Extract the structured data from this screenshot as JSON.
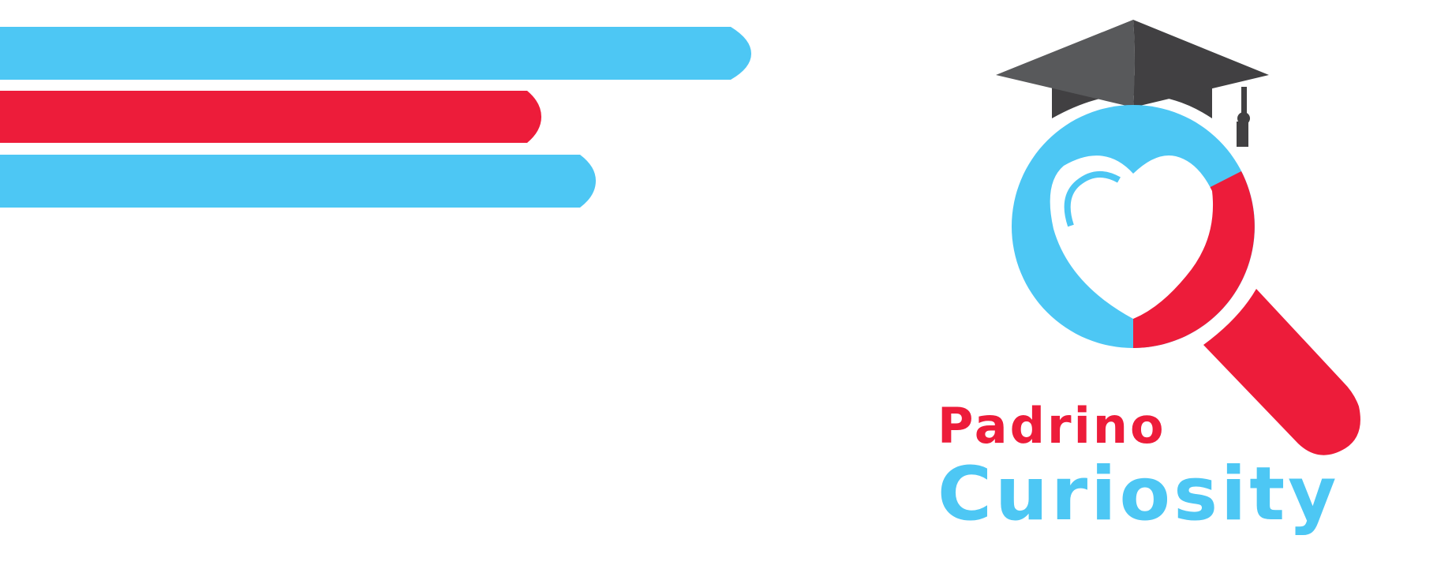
{
  "brand": {
    "line1": "Padrino",
    "line2": "Curiosity",
    "line1_color": "#ED1C3A",
    "line2_color": "#4DC7F4"
  },
  "colors": {
    "blue": "#4DC7F4",
    "red": "#ED1C3A",
    "cap_light": "#58595B",
    "cap_dark": "#414042",
    "background": "#FFFFFF"
  },
  "graphics": {
    "stripes": [
      "blue",
      "red",
      "blue"
    ],
    "logo_icons": [
      "graduation-cap-icon",
      "magnifying-glass-icon",
      "heart-icon"
    ]
  }
}
